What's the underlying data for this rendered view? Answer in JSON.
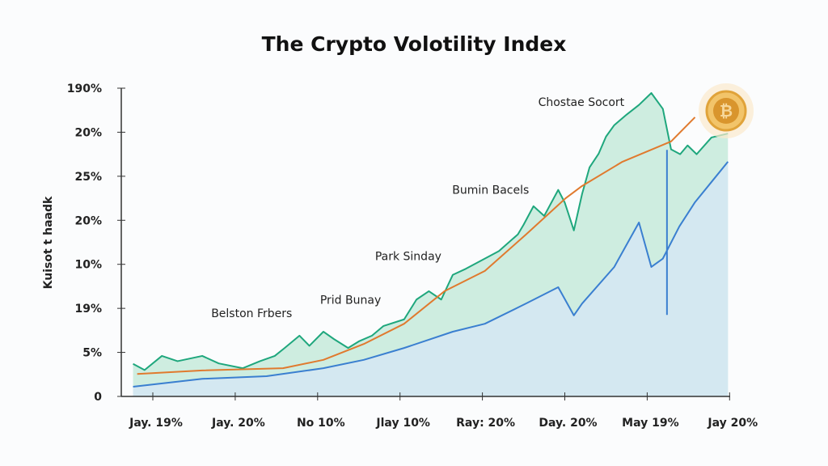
{
  "chart_data": {
    "type": "line",
    "title": "The Crypto Volotility Index",
    "xlabel": "",
    "ylabel": "Kuisot t haadk",
    "x_tick_labels": [
      "Jay. 19%",
      "Jay. 20%",
      "No 10%",
      "Jlay 10%",
      "Ray: 20%",
      "Day. 20%",
      "May 19%",
      "Jay 20%"
    ],
    "x_ticks": [
      0,
      10,
      20,
      30,
      40,
      50,
      60,
      70
    ],
    "y_tick_labels": [
      "0",
      "5%",
      "19%",
      "10%",
      "20%",
      "25%",
      "20%",
      "190%"
    ],
    "y_ticks": [
      0,
      1,
      2,
      3,
      4,
      5,
      6,
      7
    ],
    "xlim": [
      -4,
      70.5
    ],
    "ylim": [
      0,
      7
    ],
    "grid": false,
    "annotations": [
      {
        "text": "Belston Frbers",
        "x": 12,
        "y": 1.8
      },
      {
        "text": "Prid Bunay",
        "x": 24,
        "y": 2.1
      },
      {
        "text": "Park Sinday",
        "x": 31,
        "y": 3.1
      },
      {
        "text": "Bumin Bacels",
        "x": 41,
        "y": 4.6
      },
      {
        "text": "Chostae Socort",
        "x": 52,
        "y": 6.6
      }
    ],
    "series": [
      {
        "name": "green",
        "color": "#1fa77d",
        "fill": "#bfe8d6",
        "x": [
          -2.4,
          -1,
          1.1,
          3,
          6,
          8,
          10.9,
          13,
          14.8,
          16,
          17.8,
          19,
          20.7,
          22,
          23.7,
          25,
          26.6,
          28,
          30.5,
          32,
          33.5,
          35,
          36.4,
          38,
          40.3,
          42,
          44.3,
          45,
          46.2,
          47.5,
          49.2,
          50,
          51.1,
          52.1,
          53,
          54.1,
          55,
          56,
          57.5,
          59,
          60.5,
          61.9,
          62.9,
          64,
          64.9,
          66,
          67.8,
          69.8
        ],
        "y": [
          0.74,
          0.6,
          0.92,
          0.8,
          0.92,
          0.75,
          0.64,
          0.8,
          0.92,
          1.1,
          1.38,
          1.15,
          1.47,
          1.3,
          1.1,
          1.25,
          1.38,
          1.6,
          1.75,
          2.2,
          2.39,
          2.2,
          2.76,
          2.9,
          3.13,
          3.3,
          3.68,
          3.9,
          4.32,
          4.1,
          4.69,
          4.4,
          3.77,
          4.6,
          5.2,
          5.51,
          5.9,
          6.16,
          6.4,
          6.62,
          6.89,
          6.53,
          5.61,
          5.5,
          5.7,
          5.5,
          5.88,
          5.97
        ]
      },
      {
        "name": "orange",
        "color": "#e07a2e",
        "x": [
          -1.9,
          6,
          15.8,
          20.7,
          25.6,
          30.5,
          35.4,
          40.3,
          45.3,
          50.1,
          52.1,
          57,
          62.9,
          65.8
        ],
        "y": [
          0.51,
          0.59,
          0.64,
          0.83,
          1.19,
          1.65,
          2.39,
          2.85,
          3.68,
          4.5,
          4.78,
          5.33,
          5.79,
          6.34
        ]
      },
      {
        "name": "blue",
        "color": "#3a7fd0",
        "fill": "#d6e6f7",
        "x": [
          -2.4,
          6,
          13.8,
          20.7,
          25.6,
          30.5,
          36.4,
          40.3,
          45.3,
          49.2,
          51.1,
          52.1,
          56,
          59,
          60.5,
          61.9,
          63.9,
          65.8,
          67.8,
          69.8
        ],
        "y": [
          0.22,
          0.4,
          0.46,
          0.64,
          0.83,
          1.1,
          1.47,
          1.65,
          2.11,
          2.48,
          1.84,
          2.11,
          2.94,
          3.95,
          2.94,
          3.13,
          3.86,
          4.41,
          4.87,
          5.33
        ]
      }
    ],
    "vertical_line": {
      "x": 62.4,
      "y_from": 1.85,
      "y_to": 5.6,
      "color": "#3a7fd0"
    }
  }
}
